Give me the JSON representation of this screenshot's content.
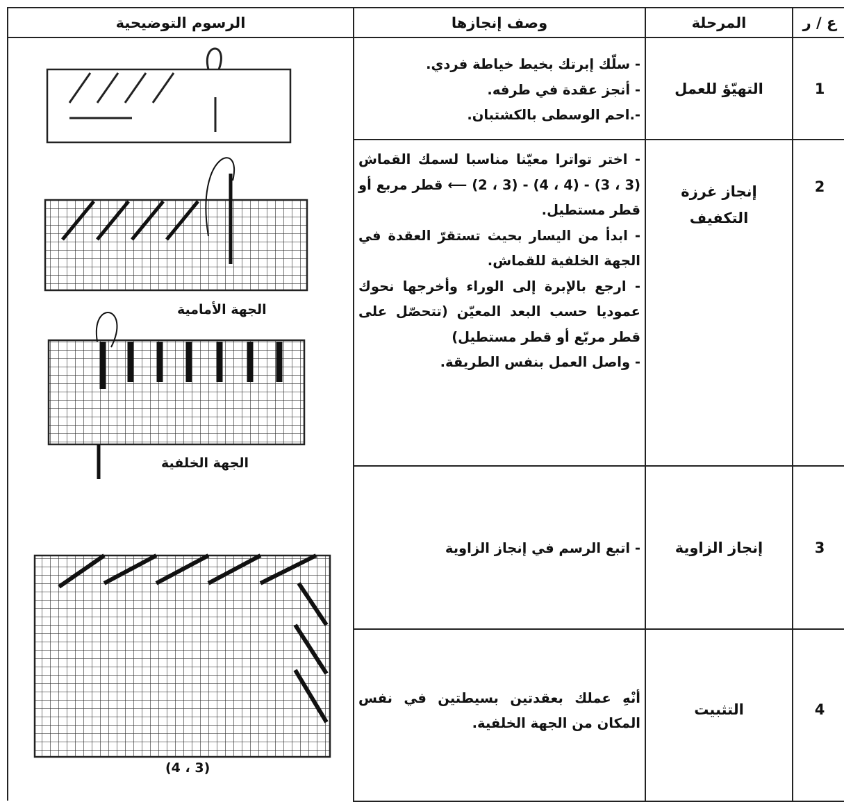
{
  "table": {
    "headers": [
      "ع / ر",
      "المرحلة",
      "وصف إنجازها",
      "الرسوم التوضيحية"
    ],
    "rows": [
      {
        "number": "1",
        "stage": "التهيّؤ للعمل",
        "steps": [
          "- سلّك إبرتك بخيط خياطة فردي.",
          "- أنجز عقدة في طرفه.",
          "-.احم الوسطى بالكشتبان."
        ]
      },
      {
        "number": "2",
        "stage": "إنجاز غرزة التكفيف",
        "steps": [
          "- اختر تواترا معيّنا مناسبا لسمك القماش (3 ، 3) - (4 ، 4) - (3 ، 2) ⟵ قطر مربع أو قطر مستطيل.",
          "- ابدأ من اليسار بحيث تستقرّ العقدة في الجهة الخلفية للقماش.",
          "- ارجع بالإبرة إلى الوراء وأخرجها نحوك عموديا حسب البعد المعيّن (تتحصّل على قطر مربّع أو قطر مستطيل)",
          "- واصل العمل بنفس الطريقة."
        ]
      },
      {
        "number": "3",
        "stage": "إنجاز الزاوية",
        "steps": [
          "- اتبع الرسم في إنجاز الزاوية"
        ]
      },
      {
        "number": "4",
        "stage": "التثبيت",
        "steps": [
          "أنْهِ عملك بعقدتين بسيطتين في نفس المكان من الجهة الخلفية."
        ]
      }
    ]
  },
  "illustrations": {
    "captions": [
      "الجهة الأمامية",
      "الجهة الخلفية",
      "(4 ، 3)"
    ]
  }
}
